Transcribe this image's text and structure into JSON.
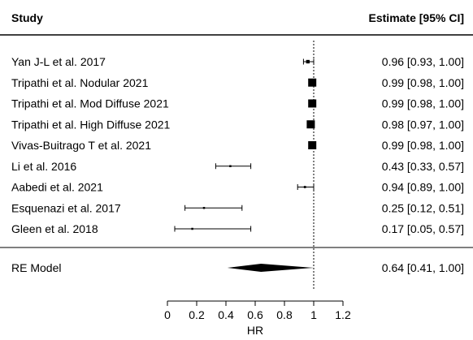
{
  "chart_data": {
    "type": "forest",
    "header": {
      "study_label": "Study",
      "estimate_label": "Estimate [95% CI]"
    },
    "studies": [
      {
        "name": "Yan J-L et al. 2017",
        "estimate": 0.96,
        "lower": 0.93,
        "upper": 1.0,
        "estimate_text": "0.96 [0.93, 1.00]"
      },
      {
        "name": "Tripathi et al. Nodular 2021",
        "estimate": 0.99,
        "lower": 0.98,
        "upper": 1.0,
        "estimate_text": "0.99 [0.98, 1.00]"
      },
      {
        "name": "Tripathi et al. Mod Diffuse 2021",
        "estimate": 0.99,
        "lower": 0.98,
        "upper": 1.0,
        "estimate_text": "0.99 [0.98, 1.00]"
      },
      {
        "name": "Tripathi et al. High Diffuse 2021",
        "estimate": 0.98,
        "lower": 0.97,
        "upper": 1.0,
        "estimate_text": "0.98 [0.97, 1.00]"
      },
      {
        "name": "Vivas-Buitrago T et al. 2021",
        "estimate": 0.99,
        "lower": 0.98,
        "upper": 1.0,
        "estimate_text": "0.99 [0.98, 1.00]"
      },
      {
        "name": "Li et al. 2016",
        "estimate": 0.43,
        "lower": 0.33,
        "upper": 0.57,
        "estimate_text": "0.43 [0.33, 0.57]"
      },
      {
        "name": "Aabedi et al. 2021",
        "estimate": 0.94,
        "lower": 0.89,
        "upper": 1.0,
        "estimate_text": "0.94 [0.89, 1.00]"
      },
      {
        "name": "Esquenazi et al. 2017",
        "estimate": 0.25,
        "lower": 0.12,
        "upper": 0.51,
        "estimate_text": "0.25 [0.12, 0.51]"
      },
      {
        "name": "Gleen et al. 2018",
        "estimate": 0.17,
        "lower": 0.05,
        "upper": 0.57,
        "estimate_text": "0.17 [0.05, 0.57]"
      }
    ],
    "summary": {
      "name": "RE Model",
      "estimate": 0.64,
      "lower": 0.41,
      "upper": 1.0,
      "estimate_text": "0.64 [0.41, 1.00]"
    },
    "x_ticks": [
      "0",
      "0.2",
      "0.4",
      "0.6",
      "0.8",
      "1",
      "1.2"
    ],
    "xlabel": "HR",
    "xlim": [
      0,
      1.2
    ],
    "reference_line": 1
  }
}
